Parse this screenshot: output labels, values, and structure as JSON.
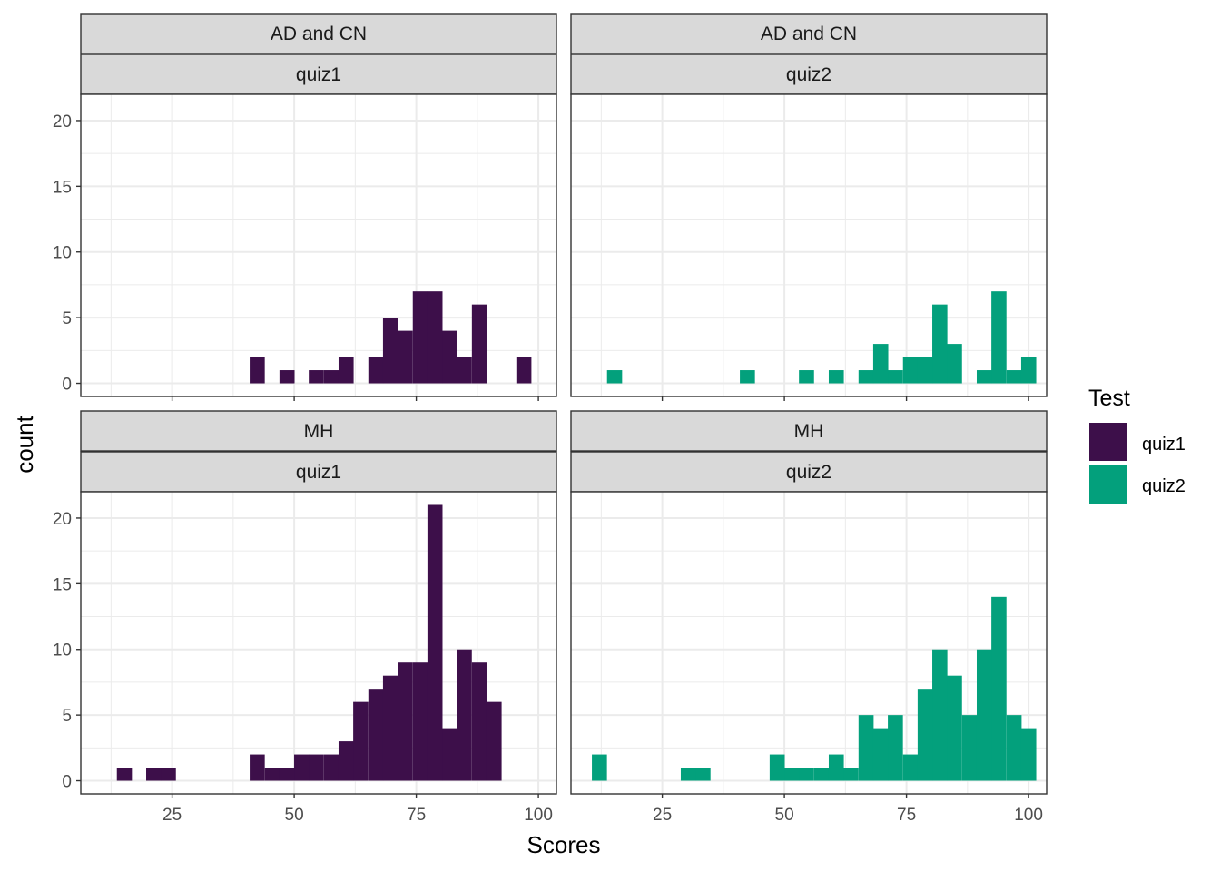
{
  "chart_data": {
    "type": "bar",
    "xlabel": "Scores",
    "ylabel": "count",
    "xlim": [
      6.3,
      103.7
    ],
    "ylim": [
      -1,
      22
    ],
    "x_ticks": [
      25,
      50,
      75,
      100
    ],
    "y_ticks": [
      0,
      5,
      10,
      15,
      20
    ],
    "bin_width": 3.03,
    "grid": true,
    "legend": {
      "title": "Test",
      "placement": "right",
      "items": [
        {
          "label": "quiz1",
          "color": "#3d0f4a"
        },
        {
          "label": "quiz2",
          "color": "#03a07c"
        }
      ]
    },
    "panels": [
      {
        "group": "AD and CN",
        "test": "quiz1",
        "color": "#3d0f4a",
        "bins": [
          [
            42.4,
            2
          ],
          [
            48.5,
            1
          ],
          [
            54.5,
            1
          ],
          [
            57.6,
            1
          ],
          [
            60.6,
            2
          ],
          [
            66.7,
            2
          ],
          [
            69.7,
            5
          ],
          [
            72.7,
            4
          ],
          [
            75.8,
            7
          ],
          [
            78.8,
            7
          ],
          [
            81.8,
            4
          ],
          [
            84.8,
            2
          ],
          [
            87.9,
            6
          ],
          [
            97,
            2
          ]
        ]
      },
      {
        "group": "AD and CN",
        "test": "quiz2",
        "color": "#03a07c",
        "bins": [
          [
            15.2,
            1
          ],
          [
            42.4,
            1
          ],
          [
            54.5,
            1
          ],
          [
            60.6,
            1
          ],
          [
            66.7,
            1
          ],
          [
            69.7,
            3
          ],
          [
            72.7,
            1
          ],
          [
            75.8,
            2
          ],
          [
            78.8,
            2
          ],
          [
            81.8,
            6
          ],
          [
            84.8,
            3
          ],
          [
            90.9,
            1
          ],
          [
            93.9,
            7
          ],
          [
            97,
            1
          ],
          [
            100,
            2
          ]
        ]
      },
      {
        "group": "MH",
        "test": "quiz1",
        "color": "#3d0f4a",
        "bins": [
          [
            15.2,
            1
          ],
          [
            21.2,
            1
          ],
          [
            24.2,
            1
          ],
          [
            42.4,
            2
          ],
          [
            45.5,
            1
          ],
          [
            48.5,
            1
          ],
          [
            51.5,
            2
          ],
          [
            54.5,
            2
          ],
          [
            57.6,
            2
          ],
          [
            60.6,
            3
          ],
          [
            63.6,
            6
          ],
          [
            66.7,
            7
          ],
          [
            69.7,
            8
          ],
          [
            72.7,
            9
          ],
          [
            75.8,
            9
          ],
          [
            78.8,
            21
          ],
          [
            81.8,
            4
          ],
          [
            84.8,
            10
          ],
          [
            87.9,
            9
          ],
          [
            90.9,
            6
          ]
        ]
      },
      {
        "group": "MH",
        "test": "quiz2",
        "color": "#03a07c",
        "bins": [
          [
            12.1,
            2
          ],
          [
            30.3,
            1
          ],
          [
            33.3,
            1
          ],
          [
            48.5,
            2
          ],
          [
            51.5,
            1
          ],
          [
            54.5,
            1
          ],
          [
            57.6,
            1
          ],
          [
            60.6,
            2
          ],
          [
            63.6,
            1
          ],
          [
            66.7,
            5
          ],
          [
            69.7,
            4
          ],
          [
            72.7,
            5
          ],
          [
            75.8,
            2
          ],
          [
            78.8,
            7
          ],
          [
            81.8,
            10
          ],
          [
            84.8,
            8
          ],
          [
            87.9,
            5
          ],
          [
            90.9,
            10
          ],
          [
            93.9,
            14
          ],
          [
            97,
            5
          ],
          [
            100,
            4
          ]
        ]
      }
    ]
  }
}
